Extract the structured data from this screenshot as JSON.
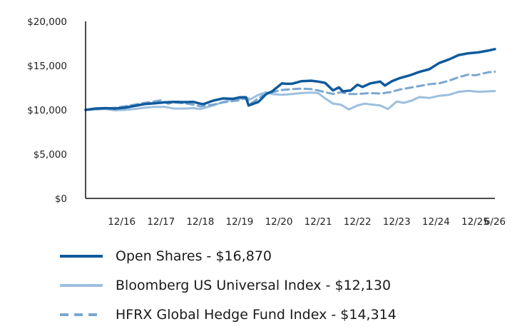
{
  "chart_data": {
    "type": "line",
    "title": "",
    "xlabel": "",
    "ylabel": "",
    "ylim": [
      0,
      20000
    ],
    "yticks": [
      0,
      5000,
      10000,
      15000,
      20000
    ],
    "ytick_labels": [
      "$0",
      "$5,000",
      "$10,000",
      "$15,000",
      "$20,000"
    ],
    "xticks": [
      {
        "label": "12/16",
        "t": 2016.92
      },
      {
        "label": "12/17",
        "t": 2017.92
      },
      {
        "label": "12/18",
        "t": 2018.92
      },
      {
        "label": "12/19",
        "t": 2019.92
      },
      {
        "label": "12/20",
        "t": 2020.92
      },
      {
        "label": "12/21",
        "t": 2021.92
      },
      {
        "label": "12/22",
        "t": 2022.92
      },
      {
        "label": "12/23",
        "t": 2023.92
      },
      {
        "label": "12/24",
        "t": 2024.92
      },
      {
        "label": "12/25",
        "t": 2025.92
      },
      {
        "label": "6/26",
        "t": 2026.42
      }
    ],
    "xlim": [
      2016.0,
      2026.42
    ],
    "grid": false,
    "legend_position": "bottom",
    "series": [
      {
        "name": "Open Shares - $16,870",
        "color": "#0f5a9c",
        "style": "solid",
        "points": [
          [
            2016.0,
            10000
          ],
          [
            2016.25,
            10150
          ],
          [
            2016.5,
            10200
          ],
          [
            2016.75,
            10150
          ],
          [
            2017.0,
            10250
          ],
          [
            2017.25,
            10450
          ],
          [
            2017.5,
            10650
          ],
          [
            2017.75,
            10750
          ],
          [
            2018.0,
            10850
          ],
          [
            2018.25,
            10900
          ],
          [
            2018.5,
            10880
          ],
          [
            2018.75,
            10900
          ],
          [
            2018.92,
            10700
          ],
          [
            2019.0,
            10650
          ],
          [
            2019.25,
            11050
          ],
          [
            2019.5,
            11300
          ],
          [
            2019.75,
            11250
          ],
          [
            2019.92,
            11420
          ],
          [
            2020.08,
            11430
          ],
          [
            2020.15,
            10500
          ],
          [
            2020.4,
            10900
          ],
          [
            2020.6,
            11800
          ],
          [
            2020.75,
            12100
          ],
          [
            2021.0,
            13000
          ],
          [
            2021.1,
            12950
          ],
          [
            2021.25,
            12950
          ],
          [
            2021.5,
            13250
          ],
          [
            2021.75,
            13300
          ],
          [
            2021.92,
            13200
          ],
          [
            2022.1,
            13050
          ],
          [
            2022.3,
            12200
          ],
          [
            2022.45,
            12550
          ],
          [
            2022.55,
            12100
          ],
          [
            2022.75,
            12200
          ],
          [
            2022.92,
            12850
          ],
          [
            2023.05,
            12600
          ],
          [
            2023.25,
            13000
          ],
          [
            2023.5,
            13200
          ],
          [
            2023.62,
            12750
          ],
          [
            2023.8,
            13250
          ],
          [
            2024.0,
            13600
          ],
          [
            2024.25,
            13900
          ],
          [
            2024.5,
            14300
          ],
          [
            2024.75,
            14600
          ],
          [
            2025.0,
            15300
          ],
          [
            2025.25,
            15700
          ],
          [
            2025.5,
            16200
          ],
          [
            2025.75,
            16400
          ],
          [
            2026.0,
            16500
          ],
          [
            2026.25,
            16700
          ],
          [
            2026.42,
            16870
          ]
        ]
      },
      {
        "name": "Bloomberg US Universal Index - $12,130",
        "color": "#9dbfde",
        "style": "solid",
        "points": [
          [
            2016.0,
            10000
          ],
          [
            2016.25,
            10050
          ],
          [
            2016.5,
            10100
          ],
          [
            2016.75,
            9950
          ],
          [
            2017.0,
            10000
          ],
          [
            2017.25,
            10100
          ],
          [
            2017.5,
            10250
          ],
          [
            2017.75,
            10350
          ],
          [
            2018.0,
            10350
          ],
          [
            2018.25,
            10150
          ],
          [
            2018.5,
            10150
          ],
          [
            2018.75,
            10200
          ],
          [
            2018.92,
            10100
          ],
          [
            2019.0,
            10200
          ],
          [
            2019.25,
            10500
          ],
          [
            2019.5,
            10900
          ],
          [
            2019.75,
            11200
          ],
          [
            2019.92,
            11250
          ],
          [
            2020.08,
            11400
          ],
          [
            2020.2,
            11200
          ],
          [
            2020.4,
            11700
          ],
          [
            2020.6,
            12000
          ],
          [
            2020.75,
            11800
          ],
          [
            2021.0,
            11700
          ],
          [
            2021.25,
            11800
          ],
          [
            2021.5,
            11900
          ],
          [
            2021.75,
            11950
          ],
          [
            2021.92,
            11900
          ],
          [
            2022.1,
            11300
          ],
          [
            2022.3,
            10700
          ],
          [
            2022.5,
            10600
          ],
          [
            2022.7,
            10050
          ],
          [
            2022.92,
            10500
          ],
          [
            2023.1,
            10700
          ],
          [
            2023.3,
            10600
          ],
          [
            2023.5,
            10500
          ],
          [
            2023.7,
            10100
          ],
          [
            2023.92,
            10950
          ],
          [
            2024.1,
            10800
          ],
          [
            2024.3,
            11050
          ],
          [
            2024.5,
            11450
          ],
          [
            2024.75,
            11350
          ],
          [
            2025.0,
            11600
          ],
          [
            2025.25,
            11700
          ],
          [
            2025.5,
            12050
          ],
          [
            2025.75,
            12150
          ],
          [
            2026.0,
            12050
          ],
          [
            2026.25,
            12100
          ],
          [
            2026.42,
            12130
          ]
        ]
      },
      {
        "name": "HFRX Global Hedge Fund Index - $14,314",
        "color": "#7aa7d1",
        "style": "dashed",
        "points": [
          [
            2016.0,
            10000
          ],
          [
            2016.25,
            10050
          ],
          [
            2016.5,
            10150
          ],
          [
            2016.75,
            10250
          ],
          [
            2017.0,
            10400
          ],
          [
            2017.25,
            10600
          ],
          [
            2017.5,
            10800
          ],
          [
            2017.75,
            10950
          ],
          [
            2017.92,
            11100
          ],
          [
            2018.1,
            10700
          ],
          [
            2018.25,
            10850
          ],
          [
            2018.5,
            10750
          ],
          [
            2018.75,
            10600
          ],
          [
            2018.92,
            10400
          ],
          [
            2019.0,
            10450
          ],
          [
            2019.25,
            10600
          ],
          [
            2019.5,
            10850
          ],
          [
            2019.75,
            11000
          ],
          [
            2019.92,
            11100
          ],
          [
            2020.1,
            11350
          ],
          [
            2020.2,
            10700
          ],
          [
            2020.5,
            11600
          ],
          [
            2020.75,
            12000
          ],
          [
            2021.0,
            12250
          ],
          [
            2021.25,
            12350
          ],
          [
            2021.5,
            12400
          ],
          [
            2021.75,
            12350
          ],
          [
            2021.92,
            12200
          ],
          [
            2022.1,
            12000
          ],
          [
            2022.3,
            11800
          ],
          [
            2022.5,
            12000
          ],
          [
            2022.7,
            11800
          ],
          [
            2022.92,
            11800
          ],
          [
            2023.25,
            11900
          ],
          [
            2023.5,
            11850
          ],
          [
            2023.75,
            12000
          ],
          [
            2024.0,
            12300
          ],
          [
            2024.25,
            12500
          ],
          [
            2024.5,
            12700
          ],
          [
            2024.75,
            12900
          ],
          [
            2025.0,
            13000
          ],
          [
            2025.25,
            13300
          ],
          [
            2025.5,
            13700
          ],
          [
            2025.75,
            14000
          ],
          [
            2025.92,
            13900
          ],
          [
            2026.1,
            14100
          ],
          [
            2026.25,
            14250
          ],
          [
            2026.42,
            14314
          ]
        ]
      }
    ]
  }
}
